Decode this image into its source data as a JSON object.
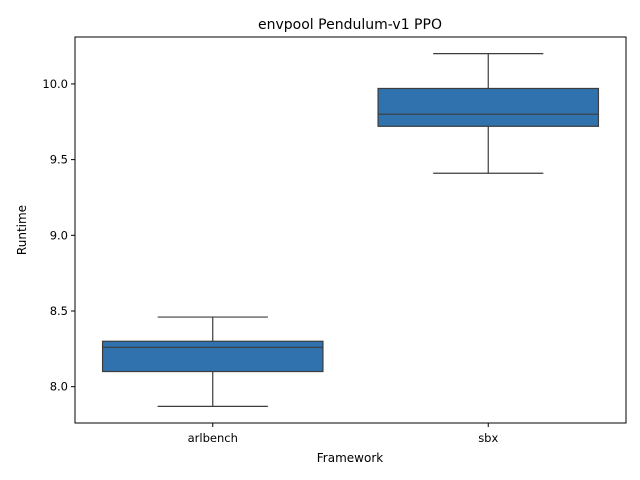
{
  "chart_data": {
    "type": "box",
    "title": "envpool Pendulum-v1 PPO",
    "xlabel": "Framework",
    "ylabel": "Runtime",
    "categories": [
      "arlbench",
      "sbx"
    ],
    "boxes": [
      {
        "category": "arlbench",
        "whisker_low": 7.87,
        "q1": 8.1,
        "median": 8.26,
        "q3": 8.3,
        "whisker_high": 8.46
      },
      {
        "category": "sbx",
        "whisker_low": 9.41,
        "q1": 9.72,
        "median": 9.8,
        "q3": 9.97,
        "whisker_high": 10.2
      }
    ],
    "ylim": [
      7.76,
      10.31
    ],
    "yticks": [
      8.0,
      8.5,
      9.0,
      9.5,
      10.0
    ],
    "ytick_labels": [
      "8.0",
      "8.5",
      "9.0",
      "9.5",
      "10.0"
    ],
    "grid": false,
    "legend": "none",
    "box_color": "#2f72ad",
    "line_color": "#3d3d3d"
  }
}
